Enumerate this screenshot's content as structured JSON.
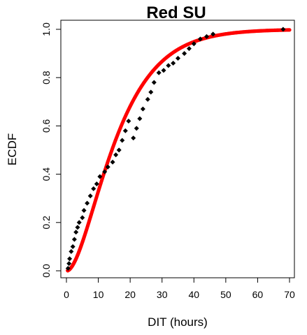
{
  "chart_data": {
    "type": "scatter",
    "title": "Red SU",
    "xlabel": "DIT (hours)",
    "ylabel": "ECDF",
    "xlim": [
      0,
      70
    ],
    "ylim": [
      0,
      1.0
    ],
    "x_ticks": [
      "0",
      "10",
      "20",
      "30",
      "40",
      "50",
      "60",
      "70"
    ],
    "y_ticks": [
      "0.0",
      "0.2",
      "0.4",
      "0.6",
      "0.8",
      "1.0"
    ],
    "grid": false,
    "legend": "none",
    "colors": {
      "observed": "#000000",
      "fitted": "#ff0000"
    },
    "series": [
      {
        "marker": "diamond",
        "color": "#000000",
        "points": [
          [
            0.5,
            0.01
          ],
          [
            0.8,
            0.03
          ],
          [
            1.0,
            0.05
          ],
          [
            1.5,
            0.08
          ],
          [
            2.0,
            0.1
          ],
          [
            2.5,
            0.13
          ],
          [
            3.0,
            0.16
          ],
          [
            3.5,
            0.18
          ],
          [
            4.0,
            0.2
          ],
          [
            5.0,
            0.22
          ],
          [
            5.5,
            0.25
          ],
          [
            6.5,
            0.28
          ],
          [
            7.5,
            0.31
          ],
          [
            8.5,
            0.34
          ],
          [
            9.5,
            0.36
          ],
          [
            10.5,
            0.39
          ],
          [
            12.0,
            0.41
          ],
          [
            13.0,
            0.43
          ],
          [
            14.5,
            0.45
          ],
          [
            15.5,
            0.48
          ],
          [
            16.5,
            0.5
          ],
          [
            17.5,
            0.54
          ],
          [
            18.5,
            0.58
          ],
          [
            19.5,
            0.62
          ],
          [
            21.0,
            0.55
          ],
          [
            22.0,
            0.59
          ],
          [
            23.0,
            0.63
          ],
          [
            24.0,
            0.67
          ],
          [
            25.5,
            0.71
          ],
          [
            26.5,
            0.74
          ],
          [
            27.5,
            0.78
          ],
          [
            29.0,
            0.82
          ],
          [
            30.5,
            0.83
          ],
          [
            32.0,
            0.85
          ],
          [
            33.5,
            0.86
          ],
          [
            35.0,
            0.88
          ],
          [
            37.0,
            0.9
          ],
          [
            38.5,
            0.92
          ],
          [
            40.0,
            0.94
          ],
          [
            42.0,
            0.96
          ],
          [
            44.0,
            0.97
          ],
          [
            46.0,
            0.98
          ],
          [
            68.0,
            1.0
          ]
        ]
      },
      {
        "marker": "circle",
        "color": "#ff0000",
        "curve": "gamma",
        "shape": 2.0,
        "scale": 8.5,
        "x_range": [
          0.4,
          70
        ],
        "n_points": 400
      }
    ]
  }
}
